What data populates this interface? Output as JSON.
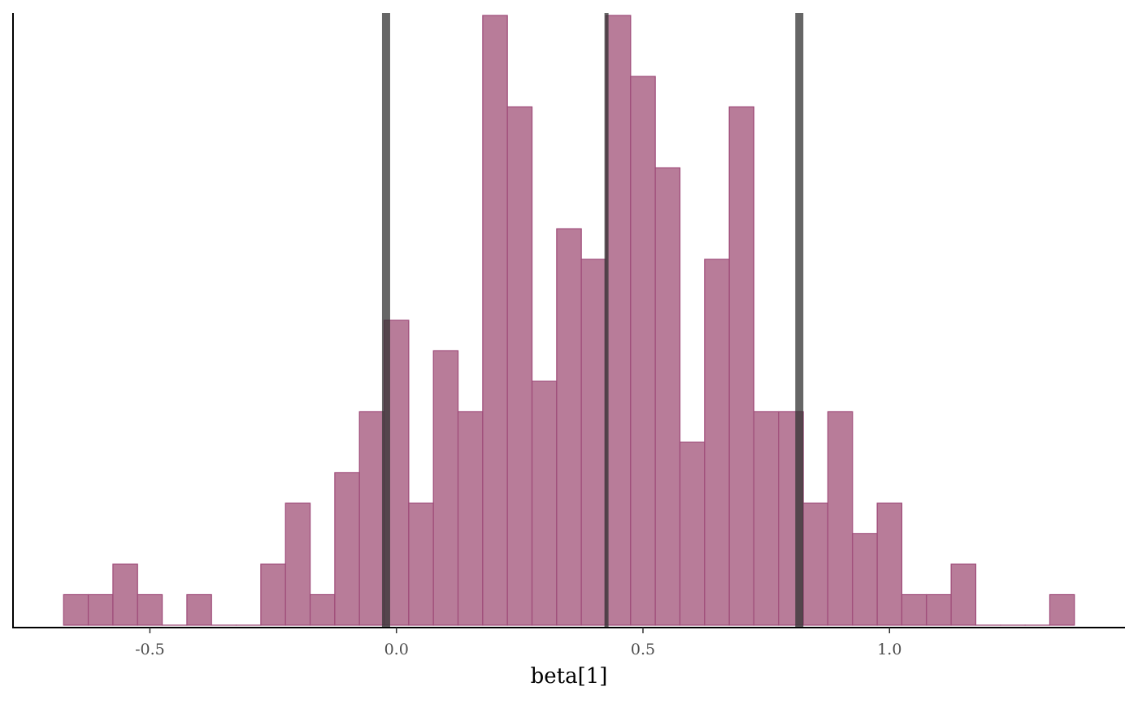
{
  "chart_data": {
    "type": "bar",
    "subtype": "histogram",
    "title": "",
    "xlabel": "beta[1]",
    "ylabel": "",
    "xlim": [
      -0.78,
      1.47
    ],
    "x_ticks": [
      -0.5,
      0.0,
      0.5,
      1.0
    ],
    "x_tick_labels": [
      "-0.5",
      "0.0",
      "0.5",
      "1.0"
    ],
    "y_axis_labels_shown": false,
    "grid": false,
    "bin_start": -0.675,
    "bin_width": 0.05,
    "counts": [
      1,
      1,
      2,
      1,
      0,
      1,
      0,
      0,
      2,
      4,
      1,
      5,
      7,
      10,
      4,
      9,
      7,
      20,
      17,
      8,
      13,
      12,
      20,
      18,
      15,
      6,
      12,
      17,
      7,
      7,
      4,
      7,
      3,
      4,
      1,
      1,
      2,
      0,
      0,
      0,
      1
    ],
    "vertical_lines": [
      {
        "value": -0.021,
        "style": "thick"
      },
      {
        "value": 0.426,
        "style": "thin"
      },
      {
        "value": 0.817,
        "style": "thick"
      }
    ],
    "colors": {
      "fill": "#b87c99",
      "stroke": "#9e4a78",
      "vline": "#333333"
    }
  }
}
